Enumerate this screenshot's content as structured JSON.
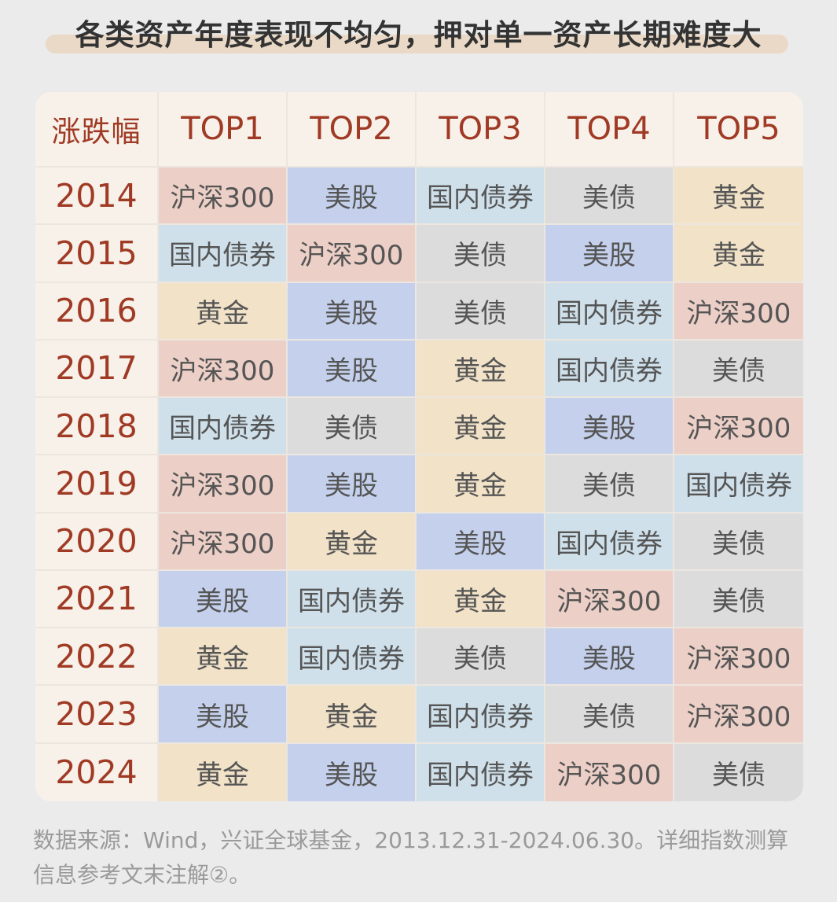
{
  "title": "各类资产年度表现不均匀，押对单一资产长期难度大",
  "chart_data": {
    "type": "table",
    "columns": [
      "涨跌幅",
      "TOP1",
      "TOP2",
      "TOP3",
      "TOP4",
      "TOP5"
    ],
    "rows": [
      {
        "year": "2014",
        "ranks": [
          "沪深300",
          "美股",
          "国内债券",
          "美债",
          "黄金"
        ]
      },
      {
        "year": "2015",
        "ranks": [
          "国内债券",
          "沪深300",
          "美债",
          "美股",
          "黄金"
        ]
      },
      {
        "year": "2016",
        "ranks": [
          "黄金",
          "美股",
          "美债",
          "国内债券",
          "沪深300"
        ]
      },
      {
        "year": "2017",
        "ranks": [
          "沪深300",
          "美股",
          "黄金",
          "国内债券",
          "美债"
        ]
      },
      {
        "year": "2018",
        "ranks": [
          "国内债券",
          "美债",
          "黄金",
          "美股",
          "沪深300"
        ]
      },
      {
        "year": "2019",
        "ranks": [
          "沪深300",
          "美股",
          "黄金",
          "美债",
          "国内债券"
        ]
      },
      {
        "year": "2020",
        "ranks": [
          "沪深300",
          "黄金",
          "美股",
          "国内债券",
          "美债"
        ]
      },
      {
        "year": "2021",
        "ranks": [
          "美股",
          "国内债券",
          "黄金",
          "沪深300",
          "美债"
        ]
      },
      {
        "year": "2022",
        "ranks": [
          "黄金",
          "国内债券",
          "美债",
          "美股",
          "沪深300"
        ]
      },
      {
        "year": "2023",
        "ranks": [
          "美股",
          "黄金",
          "国内债券",
          "美债",
          "沪深300"
        ]
      },
      {
        "year": "2024",
        "ranks": [
          "黄金",
          "美股",
          "国内债券",
          "沪深300",
          "美债"
        ]
      }
    ],
    "asset_colors": {
      "沪深300": "#eccfc6",
      "美股": "#c5d1ec",
      "国内债券": "#cfe0ea",
      "美债": "#dcdcdc",
      "黄金": "#f1e2c8"
    }
  },
  "footer": {
    "line1": "数据来源：Wind，兴证全球基金，2013.12.31-2024.06.30。详细指数测算",
    "line2": "信息参考文末注解②。"
  }
}
